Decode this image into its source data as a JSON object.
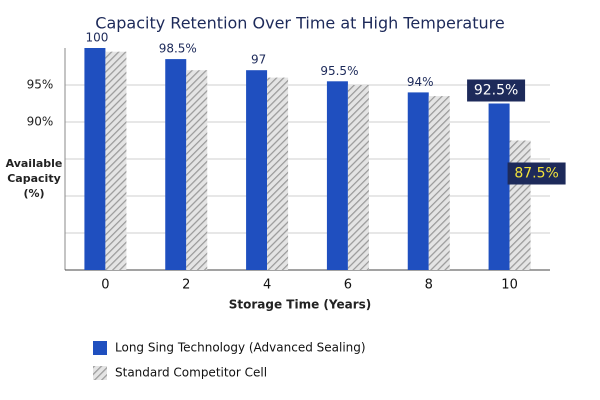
{
  "chart_data": {
    "type": "bar",
    "title": "Capacity Retention Over Time at High Temperature",
    "x_label": "Storage Time (Years)",
    "y_label": "Available Capacity (%)",
    "categories": [
      "0",
      "2",
      "4",
      "6",
      "8",
      "10"
    ],
    "series": [
      {
        "name": "Long Sing Technology (Advanced Sealing)",
        "color": "#1f4fbf",
        "values": [
          100,
          98.5,
          97,
          95.5,
          94,
          92.5
        ],
        "value_labels": [
          "100",
          "98.5%",
          "97",
          "95.5%",
          "94%",
          "92.5%"
        ]
      },
      {
        "name": "Standard Competitor Cell",
        "color": "#9a9a9a",
        "hatch": true,
        "values": [
          99.5,
          97,
          96,
          95,
          93.5,
          87.5
        ],
        "value_labels": [
          null,
          null,
          null,
          null,
          null,
          "87.5%"
        ]
      }
    ],
    "ylim": [
      70,
      100
    ],
    "yticks": [
      {
        "value": 95,
        "label": "95%"
      },
      {
        "value": 90,
        "label": "90%"
      },
      {
        "value": 85,
        "label": null
      },
      {
        "value": 80,
        "label": null
      },
      {
        "value": 75,
        "label": null
      }
    ],
    "grid": true
  }
}
